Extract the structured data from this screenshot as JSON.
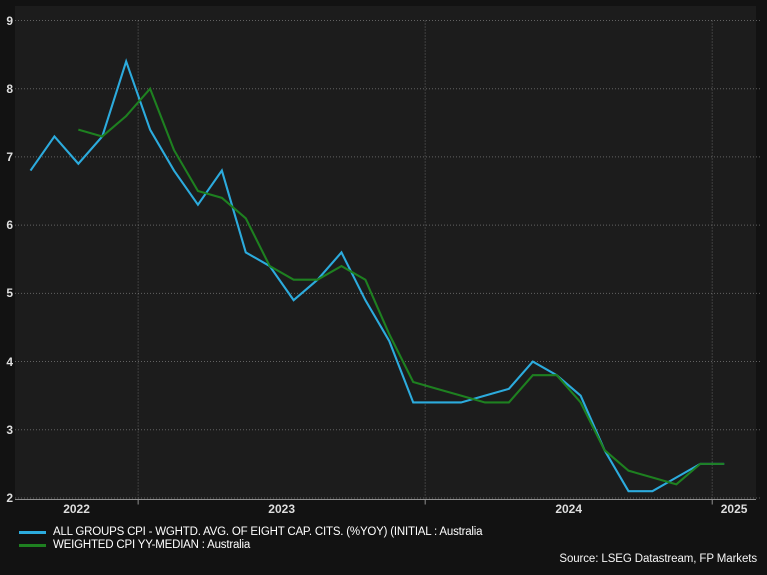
{
  "window": {
    "background_color": "#121212",
    "plot_background_color": "#1c1c1c"
  },
  "chart": {
    "y_axis": {
      "ticks": [
        9,
        8,
        7,
        6,
        5,
        4,
        3,
        2
      ]
    },
    "x_axis": {
      "year_labels": [
        "2022",
        "2023",
        "2024",
        "2025"
      ]
    }
  },
  "chart_data": {
    "type": "line",
    "title": "",
    "x_unit": "month",
    "x": [
      "Aug-22",
      "Sep-22",
      "Oct-22",
      "Nov-22",
      "Dec-22",
      "Jan-23",
      "Feb-23",
      "Mar-23",
      "Apr-23",
      "May-23",
      "Jun-23",
      "Jul-23",
      "Aug-23",
      "Sep-23",
      "Oct-23",
      "Nov-23",
      "Dec-23",
      "Jan-24",
      "Feb-24",
      "Mar-24",
      "Apr-24",
      "May-24",
      "Jun-24",
      "Jul-24",
      "Aug-24",
      "Sep-24",
      "Oct-24",
      "Nov-24",
      "Dec-24",
      "Jan-25"
    ],
    "ylim": [
      2,
      9
    ],
    "grid": true,
    "legend_position": "bottom-left",
    "series": [
      {
        "name": "ALL GROUPS CPI - WGHTD. AVG. OF EIGHT CAP. CITS. (%YOY) (INITIAL : Australia",
        "color": "#2cabdd",
        "start_index": 0,
        "values": [
          6.8,
          7.3,
          6.9,
          7.3,
          8.4,
          7.4,
          6.8,
          6.3,
          6.8,
          5.6,
          5.4,
          4.9,
          5.2,
          5.6,
          4.9,
          4.3,
          3.4,
          3.4,
          3.4,
          3.5,
          3.6,
          4.0,
          3.8,
          3.5,
          2.7,
          2.1,
          2.1,
          2.3,
          2.5,
          2.5
        ]
      },
      {
        "name": "WEIGHTED CPI YY-MEDIAN : Australia",
        "color": "#1e8020",
        "start_index": 2,
        "values": [
          7.4,
          7.3,
          7.6,
          8.0,
          7.1,
          6.5,
          6.4,
          6.1,
          5.4,
          5.2,
          5.2,
          5.4,
          5.2,
          4.4,
          3.7,
          3.6,
          3.5,
          3.4,
          3.4,
          3.8,
          3.8,
          3.4,
          2.7,
          2.4,
          2.3,
          2.2,
          2.5,
          2.5
        ]
      }
    ]
  },
  "source": {
    "label": "Source: LSEG Datastream, FP Markets"
  }
}
